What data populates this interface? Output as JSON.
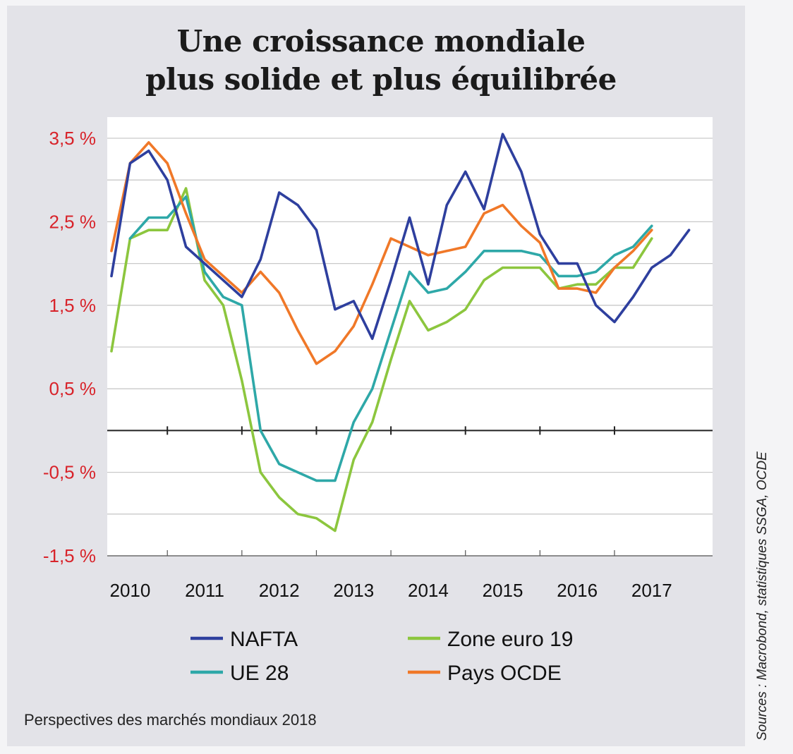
{
  "header": {
    "title_line1": "Une croissance mondiale",
    "title_line2": "plus solide et plus équilibrée"
  },
  "footer": {
    "caption": "Perspectives des marchés mondiaux 2018",
    "sources": "Sources : Macrobond, statistiques SSGA, OCDE"
  },
  "colors": {
    "nafta": "#2e3f9e",
    "ue28": "#2ea8a8",
    "zone_euro": "#8cc63e",
    "ocde": "#f07828",
    "axis_label_red": "#d8232a",
    "axis_label_black": "#111111"
  },
  "chart_data": {
    "type": "line",
    "title": "Une croissance mondiale plus solide et plus équilibrée",
    "ylim": [
      -1.5,
      3.5
    ],
    "y_ticks": [
      {
        "value": 3.5,
        "label": "3,5 %",
        "color": "red"
      },
      {
        "value": 2.5,
        "label": "2,5 %",
        "color": "red"
      },
      {
        "value": 1.5,
        "label": "1,5 %",
        "color": "red"
      },
      {
        "value": 0.5,
        "label": "0,5 %",
        "color": "red"
      },
      {
        "value": -0.5,
        "label": "-0,5 %",
        "color": "red"
      },
      {
        "value": -1.5,
        "label": "-1,5 %",
        "color": "red"
      }
    ],
    "x_ticks": [
      "2010",
      "2011",
      "2012",
      "2013",
      "2014",
      "2015",
      "2016",
      "2017"
    ],
    "xlim": [
      2009.75,
      2017.75
    ],
    "grid": true,
    "legend_placement": "bottom",
    "series": [
      {
        "name": "NAFTA",
        "color_key": "nafta",
        "values": [
          1.85,
          3.2,
          3.35,
          3.0,
          2.2,
          2.0,
          1.8,
          1.6,
          2.05,
          2.85,
          2.7,
          2.4,
          1.45,
          1.55,
          1.1,
          1.8,
          2.55,
          1.75,
          2.7,
          3.1,
          2.65,
          3.55,
          3.1,
          2.35,
          2.0,
          2.0,
          1.5,
          1.3,
          1.6,
          1.95,
          2.1,
          2.4
        ]
      },
      {
        "name": "Zone euro 19",
        "color_key": "zone_euro",
        "values": [
          0.95,
          2.3,
          2.4,
          2.4,
          2.9,
          1.8,
          1.5,
          0.6,
          -0.5,
          -0.8,
          -1.0,
          -1.05,
          -1.2,
          -0.35,
          0.1,
          0.85,
          1.55,
          1.2,
          1.3,
          1.45,
          1.8,
          1.95,
          1.95,
          1.95,
          1.7,
          1.75,
          1.75,
          1.95,
          1.95,
          2.3
        ]
      },
      {
        "name": "UE 28",
        "color_key": "ue28",
        "values": [
          2.3,
          2.55,
          2.55,
          2.8,
          1.9,
          1.6,
          1.5,
          0.0,
          -0.4,
          -0.5,
          -0.6,
          -0.6,
          0.1,
          0.5,
          1.2,
          1.9,
          1.65,
          1.7,
          1.9,
          2.15,
          2.15,
          2.15,
          2.1,
          1.85,
          1.85,
          1.9,
          2.1,
          2.2,
          2.45
        ]
      },
      {
        "name": "Pays OCDE",
        "color_key": "ocde",
        "values": [
          2.15,
          3.2,
          3.45,
          3.2,
          2.6,
          2.05,
          1.85,
          1.65,
          1.9,
          1.65,
          1.2,
          0.8,
          0.95,
          1.25,
          1.75,
          2.3,
          2.2,
          2.1,
          2.15,
          2.2,
          2.6,
          2.7,
          2.45,
          2.25,
          1.7,
          1.7,
          1.65,
          1.95,
          2.15,
          2.4
        ]
      }
    ],
    "series_x_start": [
      2009.75,
      2009.75,
      2010.0,
      2009.75
    ],
    "series_x_step": 0.25
  }
}
